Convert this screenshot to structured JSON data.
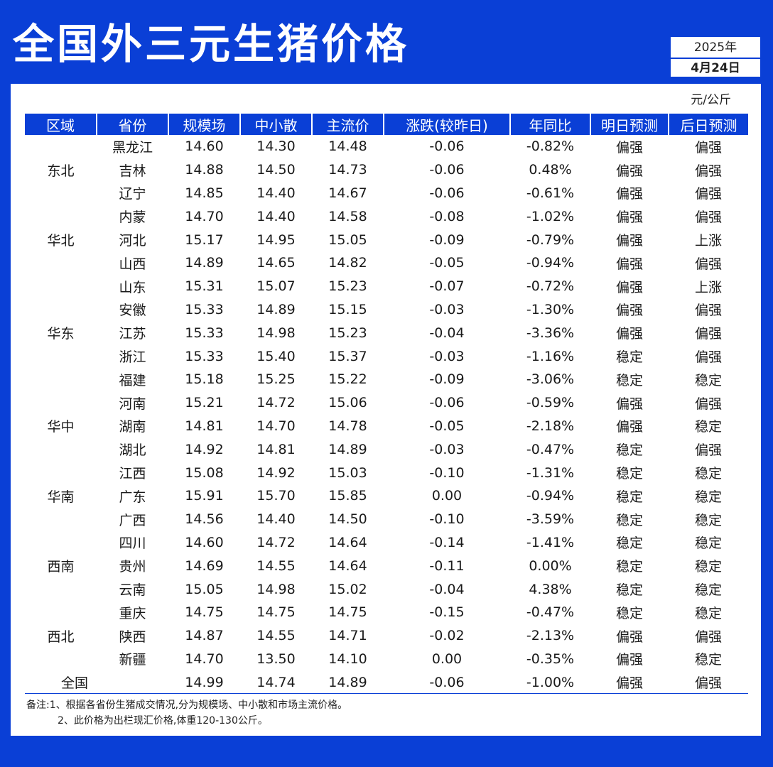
{
  "title": "全国外三元生猪价格",
  "date": {
    "year": "2025年",
    "day": "4月24日"
  },
  "unit": "元/公斤",
  "headers": [
    "区域",
    "省份",
    "规模场",
    "中小散",
    "主流价",
    "涨跌(较昨日)",
    "年同比",
    "明日预测",
    "后日预测"
  ],
  "regions": [
    {
      "name": "东北",
      "rows": [
        [
          "黑龙江",
          "14.60",
          "14.30",
          "14.48",
          "-0.06",
          "-0.82%",
          "偏强",
          "偏强"
        ],
        [
          "吉林",
          "14.88",
          "14.50",
          "14.73",
          "-0.06",
          "0.48%",
          "偏强",
          "偏强"
        ],
        [
          "辽宁",
          "14.85",
          "14.40",
          "14.67",
          "-0.06",
          "-0.61%",
          "偏强",
          "偏强"
        ]
      ]
    },
    {
      "name": "华北",
      "rows": [
        [
          "内蒙",
          "14.70",
          "14.40",
          "14.58",
          "-0.08",
          "-1.02%",
          "偏强",
          "偏强"
        ],
        [
          "河北",
          "15.17",
          "14.95",
          "15.05",
          "-0.09",
          "-0.79%",
          "偏强",
          "上涨"
        ],
        [
          "山西",
          "14.89",
          "14.65",
          "14.82",
          "-0.05",
          "-0.94%",
          "偏强",
          "偏强"
        ]
      ]
    },
    {
      "name": "华东",
      "rows": [
        [
          "山东",
          "15.31",
          "15.07",
          "15.23",
          "-0.07",
          "-0.72%",
          "偏强",
          "上涨"
        ],
        [
          "安徽",
          "15.33",
          "14.89",
          "15.15",
          "-0.03",
          "-1.30%",
          "偏强",
          "偏强"
        ],
        [
          "江苏",
          "15.33",
          "14.98",
          "15.23",
          "-0.04",
          "-3.36%",
          "偏强",
          "偏强"
        ],
        [
          "浙江",
          "15.33",
          "15.40",
          "15.37",
          "-0.03",
          "-1.16%",
          "稳定",
          "偏强"
        ],
        [
          "福建",
          "15.18",
          "15.25",
          "15.22",
          "-0.09",
          "-3.06%",
          "稳定",
          "稳定"
        ]
      ]
    },
    {
      "name": "华中",
      "rows": [
        [
          "河南",
          "15.21",
          "14.72",
          "15.06",
          "-0.06",
          "-0.59%",
          "偏强",
          "偏强"
        ],
        [
          "湖南",
          "14.81",
          "14.70",
          "14.78",
          "-0.05",
          "-2.18%",
          "偏强",
          "稳定"
        ],
        [
          "湖北",
          "14.92",
          "14.81",
          "14.89",
          "-0.03",
          "-0.47%",
          "稳定",
          "偏强"
        ]
      ]
    },
    {
      "name": "华南",
      "rows": [
        [
          "江西",
          "15.08",
          "14.92",
          "15.03",
          "-0.10",
          "-1.31%",
          "稳定",
          "稳定"
        ],
        [
          "广东",
          "15.91",
          "15.70",
          "15.85",
          "0.00",
          "-0.94%",
          "稳定",
          "稳定"
        ],
        [
          "广西",
          "14.56",
          "14.40",
          "14.50",
          "-0.10",
          "-3.59%",
          "稳定",
          "稳定"
        ]
      ]
    },
    {
      "name": "西南",
      "rows": [
        [
          "四川",
          "14.60",
          "14.72",
          "14.64",
          "-0.14",
          "-1.41%",
          "稳定",
          "稳定"
        ],
        [
          "贵州",
          "14.69",
          "14.55",
          "14.64",
          "-0.11",
          "0.00%",
          "稳定",
          "稳定"
        ],
        [
          "云南",
          "15.05",
          "14.98",
          "15.02",
          "-0.04",
          "4.38%",
          "稳定",
          "稳定"
        ]
      ]
    },
    {
      "name": "西北",
      "rows": [
        [
          "重庆",
          "14.75",
          "14.75",
          "14.75",
          "-0.15",
          "-0.47%",
          "稳定",
          "稳定"
        ],
        [
          "陕西",
          "14.87",
          "14.55",
          "14.71",
          "-0.02",
          "-2.13%",
          "偏强",
          "偏强"
        ],
        [
          "新疆",
          "14.70",
          "13.50",
          "14.10",
          "0.00",
          "-0.35%",
          "偏强",
          "稳定"
        ]
      ]
    }
  ],
  "national": [
    "全国",
    "14.99",
    "14.74",
    "14.89",
    "-0.06",
    "-1.00%",
    "偏强",
    "偏强"
  ],
  "notes": [
    "备注:1、根据各省份生猪成交情况,分为规模场、中小散和市场主流价格。",
    "2、此价格为出栏现汇价格,体重120-130公斤。"
  ],
  "colors": {
    "brand_blue": "#0a3fd6",
    "down_green": "#18b86a",
    "up_red": "#e8344f"
  }
}
